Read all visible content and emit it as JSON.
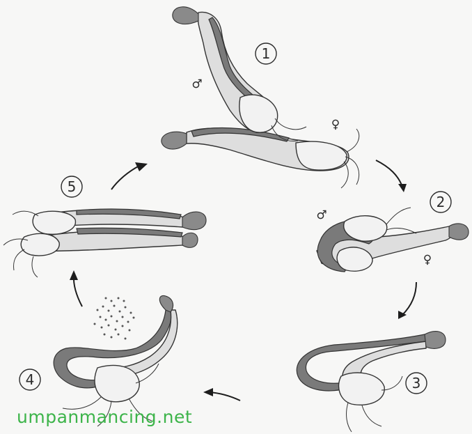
{
  "stages": [
    {
      "number": "1"
    },
    {
      "number": "2"
    },
    {
      "number": "3"
    },
    {
      "number": "4"
    },
    {
      "number": "5"
    }
  ],
  "sex_symbols": {
    "male": "♂",
    "female": "♀"
  },
  "watermark": "umpanmancing.net"
}
